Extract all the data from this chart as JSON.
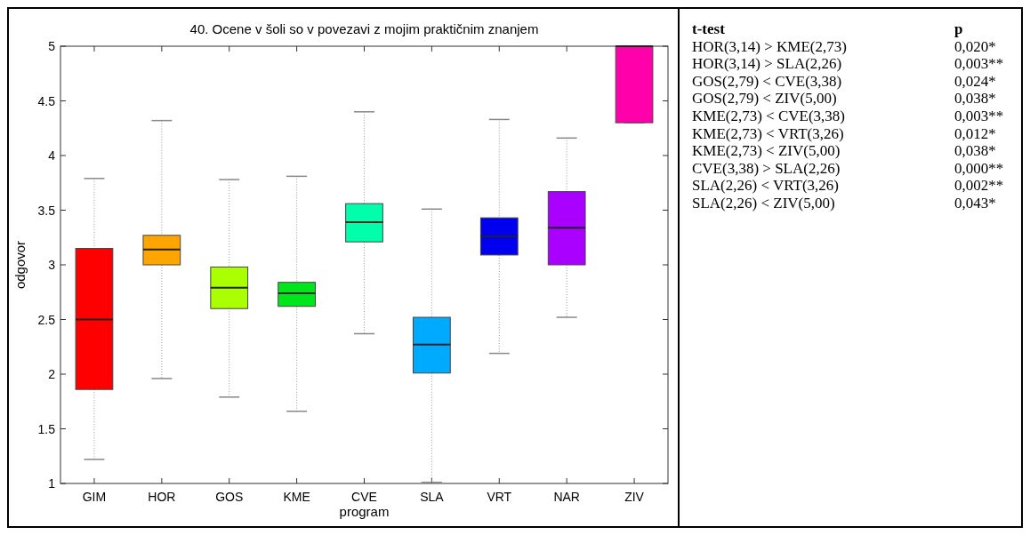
{
  "chart_data": [
    {
      "type": "box",
      "title": "40. Ocene v šoli so v povezavi z mojim praktičnim znanjem",
      "xlabel": "program",
      "ylabel": "odgovor",
      "categories": [
        "GIM",
        "HOR",
        "GOS",
        "KME",
        "CVE",
        "SLA",
        "VRT",
        "NAR",
        "ZIV"
      ],
      "colors": [
        "#ff0000",
        "#ffa500",
        "#aaff00",
        "#00e61a",
        "#00ffaa",
        "#00aaff",
        "#0000ee",
        "#aa00ff",
        "#ff00aa"
      ],
      "boxes": [
        {
          "low": 1.22,
          "q1": 1.86,
          "median": 2.5,
          "q3": 3.15,
          "high": 3.79
        },
        {
          "low": 1.96,
          "q1": 3.0,
          "median": 3.14,
          "q3": 3.27,
          "high": 4.32
        },
        {
          "low": 1.79,
          "q1": 2.6,
          "median": 2.79,
          "q3": 2.98,
          "high": 3.78
        },
        {
          "low": 1.66,
          "q1": 2.62,
          "median": 2.74,
          "q3": 2.84,
          "high": 3.81
        },
        {
          "low": 2.37,
          "q1": 3.21,
          "median": 3.39,
          "q3": 3.56,
          "high": 4.4
        },
        {
          "low": 1.01,
          "q1": 2.01,
          "median": 2.27,
          "q3": 2.52,
          "high": 3.51
        },
        {
          "low": 2.19,
          "q1": 3.09,
          "median": 3.26,
          "q3": 3.43,
          "high": 4.33
        },
        {
          "low": 2.52,
          "q1": 3.0,
          "median": 3.34,
          "q3": 3.67,
          "high": 4.16
        },
        {
          "low": 4.3,
          "q1": 4.3,
          "median": 5,
          "q3": 5,
          "high": 5
        }
      ],
      "ylim": [
        1,
        5
      ],
      "yticks": [
        1,
        1.5,
        2,
        2.5,
        3,
        3.5,
        4,
        4.5,
        5
      ],
      "grid": false
    },
    {
      "type": "other",
      "annotations": [
        "t-test",
        "p",
        "HOR(3,14) > KME(2,73)",
        "0,020*",
        "HOR(3,14) > SLA(2,26)",
        "0,003**",
        "GOS(2,79) < CVE(3,38)",
        "0,024*",
        "GOS(2,79) < ZIV(5,00)",
        "0,038*",
        "KME(2,73) < CVE(3,38)",
        "0,003**",
        "KME(2,73) < VRT(3,26)",
        "0,012*",
        "KME(2,73) < ZIV(5,00)",
        "0,038*",
        "CVE(3,38) > SLA(2,26)",
        "0,000**",
        "SLA(2,26) < VRT(3,26)",
        "0,002**",
        "SLA(2,26) < ZIV(5,00)",
        "0,043*"
      ]
    }
  ]
}
